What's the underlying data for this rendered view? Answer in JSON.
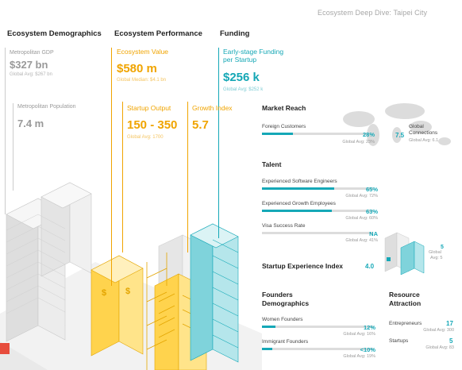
{
  "header": {
    "title": "Ecosystem Deep Dive: Taipei City"
  },
  "columns": {
    "demographics": "Ecosystem Demographics",
    "performance": "Ecosystem Performance",
    "funding": "Funding"
  },
  "demographics": {
    "gdp_label": "Metropolitan GDP",
    "gdp_value": "$327 bn",
    "gdp_avg": "Global Avg: $267 bn",
    "pop_label": "Metropolitan Population",
    "pop_value": "7.4 m"
  },
  "performance": {
    "value_label": "Ecosystem Value",
    "value": "$580 m",
    "value_median": "Global Median: $4.1 bn",
    "output_label": "Startup Output",
    "output_value": "150 - 350",
    "output_avg": "Global Avg: 1700",
    "growth_label": "Growth Index",
    "growth_value": "5.7"
  },
  "funding": {
    "label_line1": "Early-stage Funding",
    "label_line2": "per Startup",
    "value": "$256 k",
    "avg": "Global Avg: $252 k"
  },
  "market_reach": {
    "title": "Market Reach",
    "foreign_label": "Foreign Customers",
    "foreign_value": "28%",
    "foreign_avg": "Global Avg: 23%",
    "foreign_pct": 28,
    "global_conn_value": "7.5",
    "global_conn_label_1": "Global",
    "global_conn_label_2": "Connections",
    "global_conn_avg": "Global Avg: 6.1"
  },
  "talent": {
    "title": "Talent",
    "items": [
      {
        "label": "Experienced Software Engineers",
        "value": "65%",
        "avg": "Global Avg: 72%",
        "pct": 65
      },
      {
        "label": "Experienced Growth Employees",
        "value": "63%",
        "avg": "Global Avg: 60%",
        "pct": 63
      },
      {
        "label": "Visa Success Rate",
        "value": "NA",
        "avg": "Global Avg: 41%",
        "pct": 0
      }
    ],
    "side_value": "5",
    "side_label": "Global",
    "side_avg": "Avg: 5"
  },
  "startup_experience": {
    "title": "Startup Experience Index",
    "value": "4.0"
  },
  "founders": {
    "title_1": "Founders",
    "title_2": "Demographics",
    "items": [
      {
        "label": "Women Founders",
        "value": "12%",
        "avg": "Global Avg: 16%",
        "pct": 12
      },
      {
        "label": "Immigrant Founders",
        "value": "<10%",
        "avg": "Global Avg: 19%",
        "pct": 9
      }
    ]
  },
  "resource": {
    "title_1": "Resource",
    "title_2": "Attraction",
    "entrepreneurs_label": "Entrepreneurs",
    "entrepreneurs_value": "17",
    "entrepreneurs_avg": "Global Avg: 300",
    "startups_label": "Startups",
    "startups_value": "5",
    "startups_avg": "Global Avg: 83"
  },
  "colors": {
    "orange": "#f0a400",
    "teal": "#15a8b7",
    "gray": "#999999"
  }
}
